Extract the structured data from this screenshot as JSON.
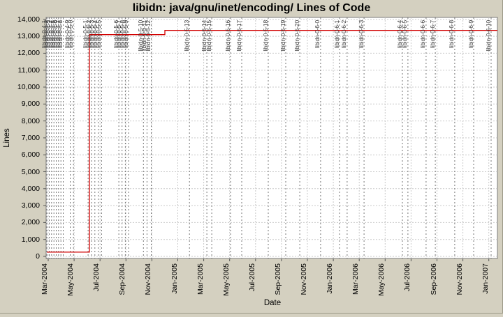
{
  "window": {
    "background": "#d4d0c0"
  },
  "chart_data": {
    "type": "line",
    "title": "libidn: java/gnu/inet/encoding/ Lines of Code",
    "xlabel": "Date",
    "ylabel": "Lines",
    "grid": true,
    "legend": "none",
    "ylim": [
      0,
      14000
    ],
    "y_tick_values": [
      0,
      1000,
      2000,
      3000,
      4000,
      5000,
      6000,
      7000,
      8000,
      9000,
      10000,
      11000,
      12000,
      13000,
      14000
    ],
    "y_tick_labels": [
      "0",
      "1,000",
      "2,000",
      "3,000",
      "4,000",
      "5,000",
      "6,000",
      "7,000",
      "8,000",
      "9,000",
      "10,000",
      "11,000",
      "12,000",
      "13,000",
      "14,000"
    ],
    "x_tick_labels": [
      "Mar-2004",
      "May-2004",
      "Jul-2004",
      "Sep-2004",
      "Nov-2004",
      "Jan-2005",
      "Mar-2005",
      "May-2005",
      "Jul-2005",
      "Sep-2005",
      "Nov-2005",
      "Jan-2006",
      "Mar-2006",
      "May-2006",
      "Jul-2006",
      "Sep-2006",
      "Nov-2006",
      "Jan-2007"
    ],
    "series_color": "#d10000",
    "grid_color": "#c9c9c9",
    "marker_line_color": "#757575",
    "series": [
      {
        "name": "lines-of-code",
        "step": true,
        "points": [
          {
            "month": -0.11,
            "value": 250
          },
          {
            "month": 3.18,
            "value": 13100
          },
          {
            "month": 9.0,
            "value": 13350
          },
          {
            "month": 34.66,
            "value": 13350
          }
        ]
      }
    ],
    "version_markers": [
      {
        "label": "libidn-0-4-1",
        "month": -0.1
      },
      {
        "label": "libidn-0-4-2",
        "month": 0.08
      },
      {
        "label": "libidn-0-4-3",
        "month": 0.26
      },
      {
        "label": "libidn-0-4-4",
        "month": 0.44
      },
      {
        "label": "libidn-0-4-5",
        "month": 0.62
      },
      {
        "label": "libidn-0-4-6",
        "month": 0.8
      },
      {
        "label": "libidn-0-4-7",
        "month": 0.98
      },
      {
        "label": "libidn-0-4-8",
        "month": 1.16
      },
      {
        "label": "libidn-0-4-9",
        "month": 1.7
      },
      {
        "label": "libidn-0-5-0",
        "month": 1.95
      },
      {
        "label": "libidn-0-5-1",
        "month": 3.08
      },
      {
        "label": "libidn-0-5-2",
        "month": 3.34
      },
      {
        "label": "libidn-0-5-3",
        "month": 3.6
      },
      {
        "label": "libidn-0-5-4",
        "month": 3.86
      },
      {
        "label": "libidn-0-5-5",
        "month": 4.12
      },
      {
        "label": "libidn-0-5-6",
        "month": 5.45
      },
      {
        "label": "libidn-0-5-7",
        "month": 5.7
      },
      {
        "label": "libidn-0-5-8",
        "month": 5.95
      },
      {
        "label": "libidn-0-5-9",
        "month": 6.2
      },
      {
        "label": "libidn-0-5-10",
        "month": 7.35
      },
      {
        "label": "libidn-0-5-11",
        "month": 7.62
      },
      {
        "label": "libidn-0-5-12",
        "month": 7.95
      },
      {
        "label": "libidn-0-5-13",
        "month": 10.9
      },
      {
        "label": "libidn-0-5-14",
        "month": 12.24
      },
      {
        "label": "libidn-0-5-15",
        "month": 12.62
      },
      {
        "label": "libidn-0-5-16",
        "month": 14.07
      },
      {
        "label": "libidn-0-5-17",
        "month": 14.93
      },
      {
        "label": "libidn-0-5-18",
        "month": 16.98
      },
      {
        "label": "libidn-0-5-19",
        "month": 18.33
      },
      {
        "label": "libidn-0-5-20",
        "month": 19.41
      },
      {
        "label": "libidn-0-6-0",
        "month": 21.02
      },
      {
        "label": "libidn-0-6-1",
        "month": 22.48
      },
      {
        "label": "libidn-0-6-2",
        "month": 23.07
      },
      {
        "label": "libidn-0-6-3",
        "month": 24.37
      },
      {
        "label": "libidn-0-6-4",
        "month": 27.33
      },
      {
        "label": "libidn-0-6-5",
        "month": 27.76
      },
      {
        "label": "libidn-0-6-6",
        "month": 29.16
      },
      {
        "label": "libidn-0-6-7",
        "month": 29.87
      },
      {
        "label": "libidn-0-6-8",
        "month": 31.37
      },
      {
        "label": "libidn-0-6-9",
        "month": 32.83
      },
      {
        "label": "libidn-0-6-10",
        "month": 34.18
      }
    ]
  }
}
